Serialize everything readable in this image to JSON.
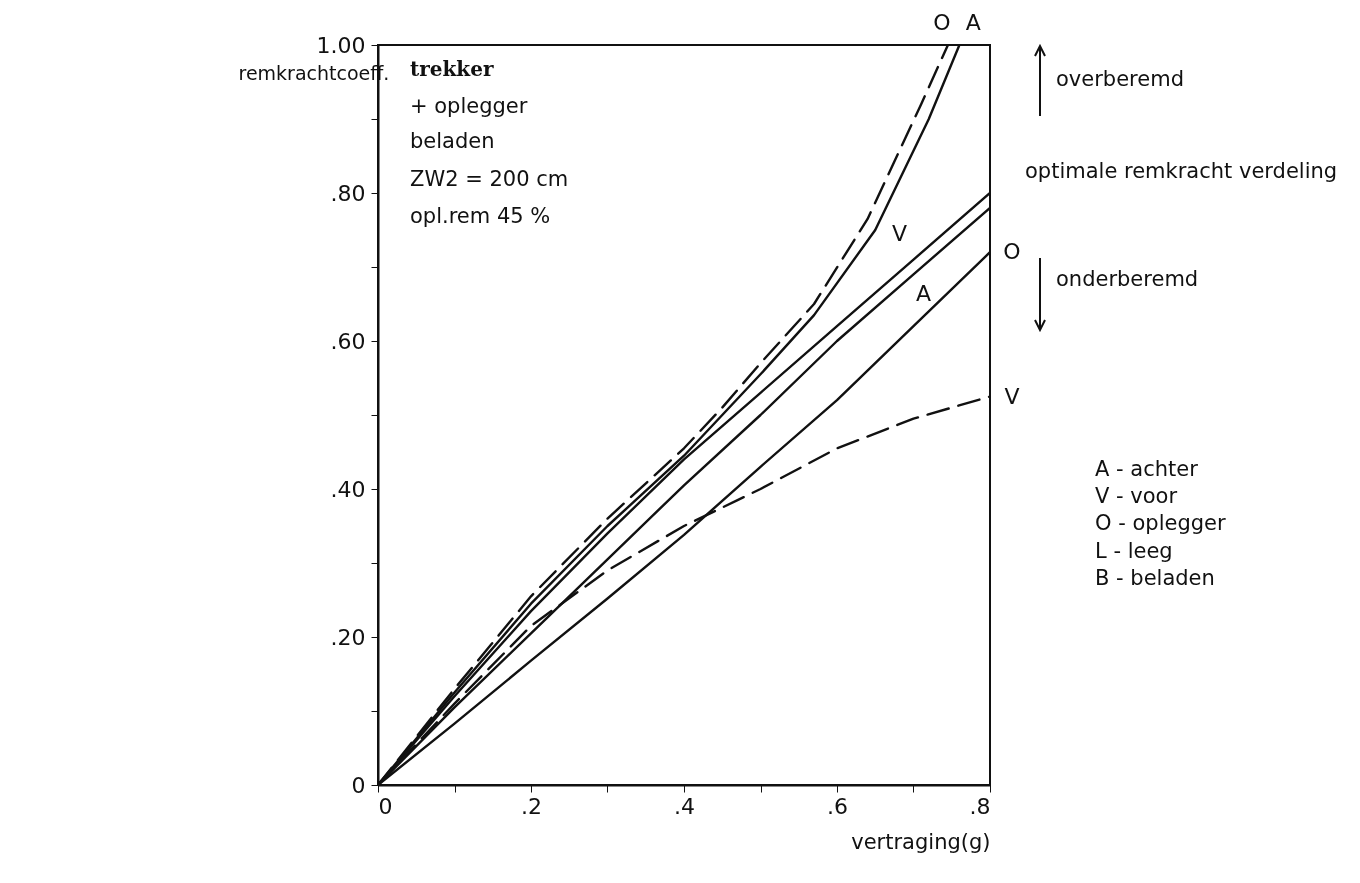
{
  "chart_data": {
    "type": "line",
    "xlabel": "vertraging(g)",
    "ylabel": "remkrachtcoeff.",
    "xlim": [
      0,
      0.8
    ],
    "ylim": [
      0,
      1
    ],
    "xticks": [
      0,
      {
        "value": 0.1,
        "label": null
      },
      {
        "value": 0.2,
        "label": ".2"
      },
      {
        "value": 0.3,
        "label": null
      },
      {
        "value": 0.4,
        "label": ".4"
      },
      {
        "value": 0.5,
        "label": null
      },
      {
        "value": 0.6,
        "label": ".6"
      },
      {
        "value": 0.7,
        "label": null
      },
      {
        "value": 0.8,
        "label": ".8"
      }
    ],
    "yticks": [
      0,
      {
        "value": 0.1,
        "label": null
      },
      {
        "value": 0.2,
        "label": ".20"
      },
      {
        "value": 0.3,
        "label": null
      },
      {
        "value": 0.4,
        "label": ".40"
      },
      {
        "value": 0.5,
        "label": null
      },
      {
        "value": 0.6,
        "label": ".60"
      },
      {
        "value": 0.7,
        "label": null
      },
      {
        "value": 0.8,
        "label": ".80"
      },
      {
        "value": 0.9,
        "label": null
      },
      {
        "value": 1,
        "label": "1.00"
      }
    ],
    "grid": false,
    "series": [
      {
        "name": "O",
        "color": "#111111",
        "line_style": "dashed",
        "x": [
          0,
          0.1,
          0.2,
          0.3,
          0.4,
          0.45,
          0.5,
          0.57,
          0.64,
          0.71,
          0.745
        ],
        "values": [
          0,
          0.13,
          0.255,
          0.36,
          0.455,
          0.51,
          0.57,
          0.65,
          0.765,
          0.92,
          1.0
        ]
      },
      {
        "name": "A",
        "color": "#111111",
        "line_style": "solid",
        "x": [
          0,
          0.1,
          0.2,
          0.3,
          0.4,
          0.45,
          0.5,
          0.57,
          0.65,
          0.72,
          0.76
        ],
        "values": [
          0,
          0.125,
          0.245,
          0.35,
          0.445,
          0.5,
          0.555,
          0.635,
          0.75,
          0.9,
          1.0
        ]
      },
      {
        "name": "V",
        "color": "#111111",
        "line_style": "solid",
        "x": [
          0,
          0.1,
          0.2,
          0.3,
          0.4,
          0.5,
          0.6,
          0.7,
          0.8
        ],
        "values": [
          0,
          0.12,
          0.235,
          0.34,
          0.44,
          0.53,
          0.62,
          0.71,
          0.8
        ]
      },
      {
        "name": "A",
        "color": "#111111",
        "line_style": "solid",
        "x": [
          0,
          0.1,
          0.2,
          0.3,
          0.4,
          0.5,
          0.6,
          0.7,
          0.8
        ],
        "values": [
          0,
          0.105,
          0.205,
          0.305,
          0.405,
          0.5,
          0.6,
          0.69,
          0.78
        ]
      },
      {
        "name": "O",
        "color": "#111111",
        "line_style": "solid",
        "x": [
          0,
          0.1,
          0.2,
          0.3,
          0.4,
          0.5,
          0.6,
          0.7,
          0.8
        ],
        "values": [
          0,
          0.083,
          0.168,
          0.252,
          0.338,
          0.43,
          0.52,
          0.62,
          0.72
        ]
      },
      {
        "name": "V",
        "color": "#111111",
        "line_style": "dashed",
        "x": [
          0,
          0.1,
          0.2,
          0.3,
          0.4,
          0.47,
          0.5,
          0.6,
          0.7,
          0.8
        ],
        "values": [
          0,
          0.11,
          0.215,
          0.29,
          0.35,
          0.385,
          0.4,
          0.455,
          0.495,
          0.525
        ]
      }
    ],
    "annotations": [
      "trekker",
      "+ oplegger",
      "beladen",
      "ZW2 = 200 cm",
      "opl.rem 45 %",
      "overberemd",
      "optimale remkracht verdeling",
      "onderberemd",
      "A - achter",
      "V - voor",
      "O - oplegger",
      "L - leeg",
      "B - beladen"
    ]
  }
}
